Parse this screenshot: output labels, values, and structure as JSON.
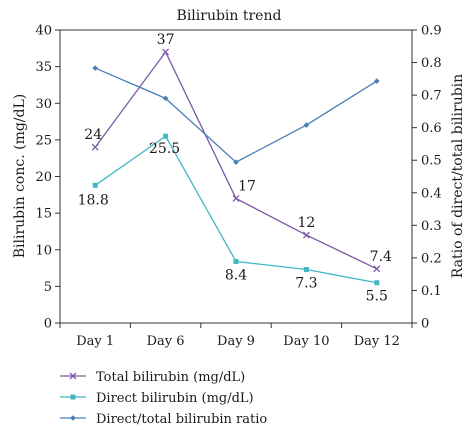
{
  "chart_data": {
    "type": "line",
    "title": "Bilirubin trend",
    "categories": [
      "Day 1",
      "Day 6",
      "Day 9",
      "Day 10",
      "Day 12"
    ],
    "ylabel": "Bilirubin conc. (mg/dL)",
    "y2label": "Ratio of direct/total bilirubin",
    "ylim": [
      0,
      40
    ],
    "y_ticks": [
      "0",
      "5",
      "10",
      "15",
      "20",
      "25",
      "30",
      "35",
      "40"
    ],
    "y2lim": [
      0,
      0.9
    ],
    "y2_ticks": [
      "0",
      "0.1",
      "0.2",
      "0.3",
      "0.4",
      "0.5",
      "0.6",
      "0.7",
      "0.8",
      "0.9"
    ],
    "grid": false,
    "legend_position": "bottom",
    "series": [
      {
        "name": "Total bilirubin (mg/dL)",
        "axis": "left",
        "color": "#7b57a8",
        "marker": "x",
        "values": [
          24,
          37,
          17,
          12,
          7.4
        ],
        "labels": [
          "24",
          "37",
          "17",
          "12",
          "7.4"
        ]
      },
      {
        "name": "Direct bilirubin (mg/dL)",
        "axis": "left",
        "color": "#3fb8c4",
        "marker": "square",
        "values": [
          18.8,
          25.5,
          8.4,
          7.3,
          5.5
        ],
        "labels": [
          "18.8",
          "25.5",
          "8.4",
          "7.3",
          "5.5"
        ]
      },
      {
        "name": "Direct/total bilirubin ratio",
        "axis": "right",
        "color": "#4a7fb5",
        "marker": "diamond",
        "values": [
          0.783,
          0.69,
          0.494,
          0.608,
          0.743
        ]
      }
    ]
  }
}
